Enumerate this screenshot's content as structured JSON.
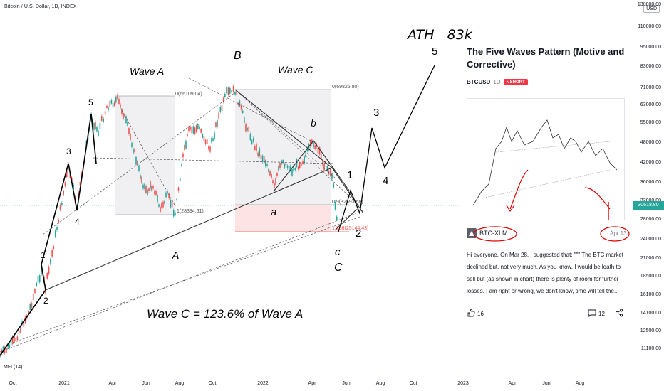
{
  "symbol_title": "Bitcoin / U.S. Dollar, 1D, INDEX",
  "indicator_label": "MFI (14)",
  "currency": "USD",
  "price_axis": [
    "130000.00",
    "110000.00",
    "95000.00",
    "83000.00",
    "71000.00",
    "63000.00",
    "55000.00",
    "48000.00",
    "42000.00",
    "36000.00",
    "32000.00",
    "28000.00",
    "24000.00",
    "21000.00",
    "18500.00",
    "16100.00",
    "14100.00",
    "12500.00",
    "11100.00"
  ],
  "last_price": "30618.80",
  "time_axis": [
    "Oct",
    "2021",
    "Apr",
    "Jun",
    "Aug",
    "Oct",
    "2022",
    "Apr",
    "Jun",
    "Aug",
    "Oct",
    "2023",
    "Apr",
    "Jun",
    "Aug"
  ],
  "annotations": {
    "ath": "ATH   83k",
    "wave_a": "Wave A",
    "wave_c": "Wave C",
    "ratio": "Wave C = 123.6% of Wave A",
    "fib_a_top": "0(66109.04)",
    "fib_a_bottom": "1(28394.61)",
    "fib_c_top": "0(69825.80)",
    "fib_c_mid": "0.9(32593.66)",
    "fib_c_bottom": "1.236(25144.43)",
    "big_a": "A",
    "big_b": "B",
    "big_c": "C",
    "n1": "1",
    "n2": "2",
    "n3": "3",
    "n4": "4",
    "n5": "5",
    "f1": "1",
    "f2": "2",
    "f3": "3",
    "f4": "4",
    "f5": "5",
    "sa": "a",
    "sb": "b",
    "sc": "c"
  },
  "idea": {
    "title": "The Five Waves Pattern (Motive and Corrective)",
    "symbol": "BTCUSD",
    "timeframe": "1D",
    "badge": "SHORT",
    "author": "BTC-XLM",
    "date": "Apr 13",
    "description": "Hi everyone, On Mar 28, I suggested that: \"\"\" The BTC market declined but, not very much. As you know, I would be loath to sell but (as shown in chart) there is plenty of room for further losses. I am right or wrong, we don't know, time will tell the...",
    "boosts": "16",
    "comments": "12"
  },
  "colors": {
    "up": "#26a69a",
    "down": "#ef5350",
    "badge": "#f23645",
    "annotation": "#e00000"
  }
}
